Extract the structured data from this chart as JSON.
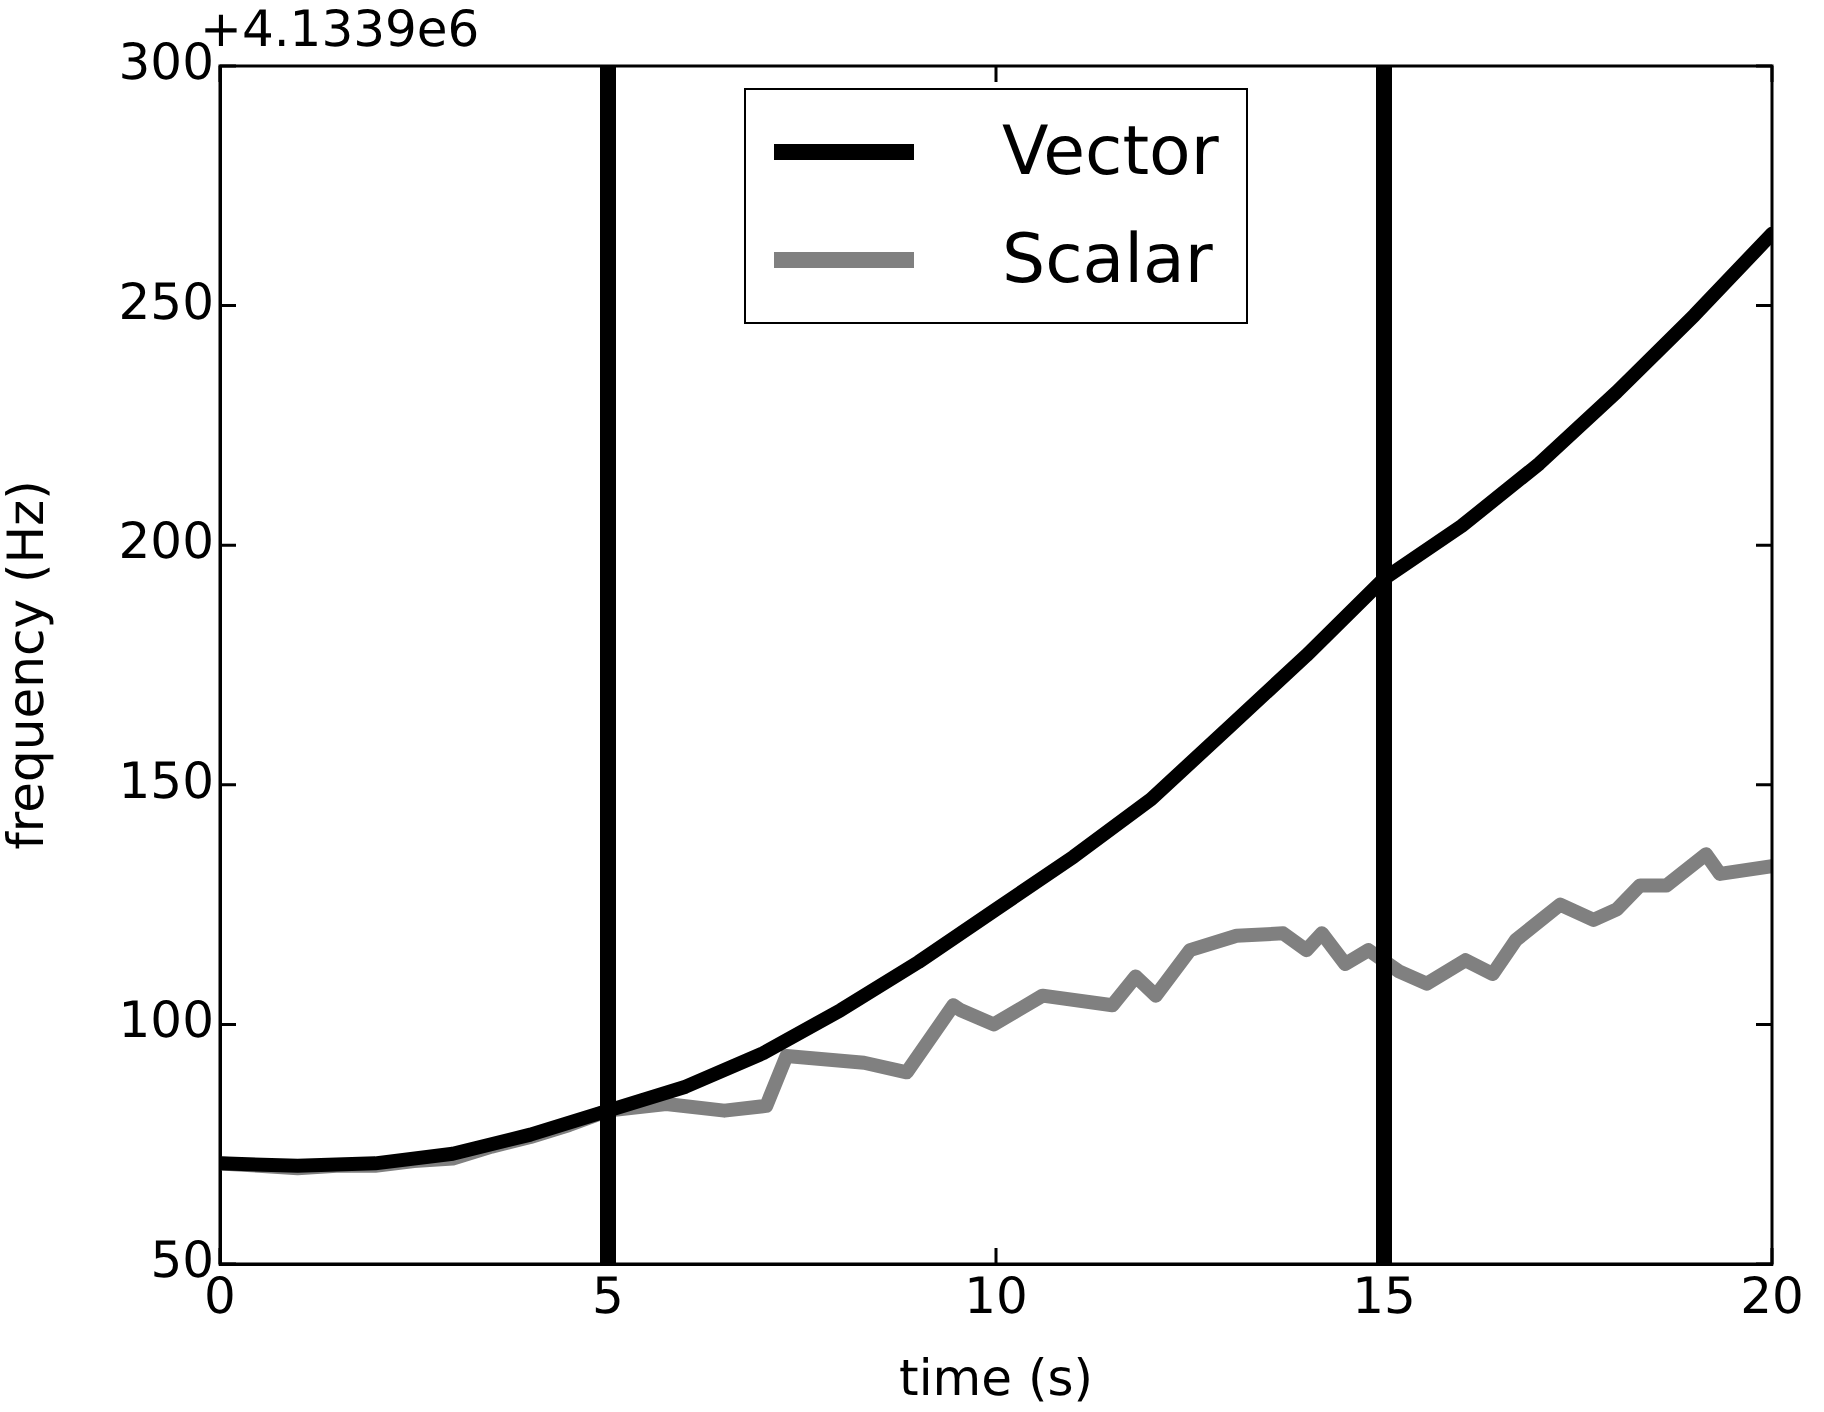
{
  "chart_data": {
    "type": "line",
    "xlabel": "time (s)",
    "ylabel": "frequency (Hz)",
    "annotations": [
      "+4.1339e6"
    ],
    "xlim": [
      0,
      20
    ],
    "xticks": [
      0,
      5,
      10,
      15,
      20
    ],
    "ylim": [
      50,
      300
    ],
    "yticks": [
      50,
      100,
      150,
      200,
      250,
      300
    ],
    "grid": false,
    "legend": "top",
    "marker": "none",
    "line_style": "solid",
    "ref_lines": [
      {
        "axis": "x",
        "value": 5,
        "color": "#000000"
      },
      {
        "axis": "x",
        "value": 15,
        "color": "#000000"
      }
    ],
    "series": [
      {
        "name": "Vector",
        "color": "#000000",
        "x": [
          0,
          1,
          2,
          3,
          4,
          5,
          6,
          7,
          8,
          9,
          10,
          11,
          12,
          13,
          14,
          15,
          16,
          17,
          18,
          19,
          20
        ],
        "values": [
          71,
          70.5,
          71,
          73,
          77,
          82,
          87,
          94,
          103,
          113,
          124,
          135,
          147,
          162,
          177,
          193,
          204,
          217,
          232,
          248,
          265
        ]
      },
      {
        "name": "Scalar",
        "color": "#808080",
        "x": [
          0,
          0.5,
          1,
          1.5,
          2,
          2.5,
          3,
          3.5,
          4,
          4.5,
          5,
          5.75,
          6.5,
          7.04,
          7.3,
          8.3,
          8.85,
          9.45,
          9.54,
          9.97,
          10.6,
          11.5,
          11.8,
          12.06,
          12.5,
          13.1,
          13.7,
          14,
          14.2,
          14.5,
          14.8,
          15.2,
          15.55,
          16.05,
          16.4,
          16.7,
          17.27,
          17.7,
          18,
          18.3,
          18.64,
          19.15,
          19.33,
          20
        ],
        "values": [
          71,
          70.5,
          70,
          70.5,
          70.5,
          71.5,
          72,
          74.5,
          76.5,
          79,
          82,
          83.4,
          82,
          83,
          93.4,
          92,
          90,
          104,
          103,
          100,
          106,
          104,
          110,
          106,
          115.5,
          118.5,
          119,
          115.5,
          119,
          112.6,
          115.5,
          111,
          108.5,
          113.4,
          110.5,
          117.6,
          125,
          121.8,
          124,
          129,
          129,
          135.5,
          131.4,
          133
        ]
      }
    ]
  }
}
